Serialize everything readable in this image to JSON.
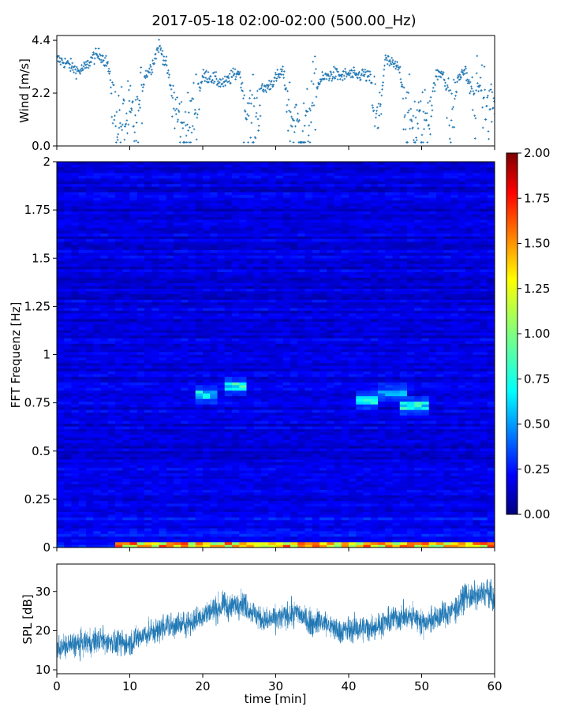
{
  "figure": {
    "title": "2017-05-18 02:00-02:00 (500.00_Hz)",
    "xlabel": "time [min]"
  },
  "colors": {
    "series": "#1f77b4",
    "axis": "#000000",
    "colormap": [
      "#00007f",
      "#0000ff",
      "#007fff",
      "#00ffff",
      "#7fff7f",
      "#ffff00",
      "#ff7f00",
      "#ff0000",
      "#7f0000"
    ]
  },
  "chart_data": [
    {
      "type": "scatter",
      "ylabel": "Wind [m/s]",
      "xlim": [
        0,
        60
      ],
      "ylim": [
        0.0,
        4.6
      ],
      "yticks": [
        0.0,
        2.2,
        4.4
      ],
      "ytick_labels": [
        "0.0",
        "2.2",
        "4.4"
      ],
      "marker": "+",
      "series": [
        {
          "x": [
            0,
            1,
            2,
            3,
            4,
            5,
            6,
            7,
            8,
            9,
            10,
            11,
            12,
            13,
            14,
            15,
            16,
            17,
            18,
            19,
            20,
            21,
            22,
            23,
            24,
            25,
            26,
            27,
            28,
            29,
            30,
            31,
            32,
            33,
            34,
            35,
            36,
            37,
            38,
            39,
            40,
            41,
            42,
            43,
            44,
            45,
            46,
            47,
            48,
            49,
            50,
            51,
            52,
            53,
            54,
            55,
            56,
            57,
            58,
            59,
            60
          ],
          "y": [
            3.6,
            3.5,
            3.3,
            3.1,
            3.3,
            3.7,
            3.8,
            3.4,
            1.2,
            1.0,
            1.2,
            0.8,
            2.9,
            3.3,
            4.2,
            3.4,
            1.8,
            0.8,
            0.6,
            1.7,
            2.9,
            2.9,
            2.7,
            2.6,
            2.9,
            3.1,
            1.4,
            1.0,
            2.3,
            2.5,
            2.8,
            3.1,
            1.2,
            0.8,
            0.5,
            1.8,
            2.7,
            2.9,
            3.0,
            2.9,
            3.0,
            2.9,
            3.0,
            2.8,
            0.7,
            3.6,
            3.4,
            3.2,
            1.2,
            0.9,
            0.8,
            1.5,
            2.9,
            3.1,
            1.0,
            2.8,
            3.2,
            1.8,
            2.6,
            1.4,
            1.9
          ]
        }
      ]
    },
    {
      "type": "heatmap",
      "ylabel": "FFT Frequenz [Hz]",
      "xlim": [
        0,
        60
      ],
      "ylim": [
        0,
        2
      ],
      "yticks": [
        0,
        0.25,
        0.5,
        0.75,
        1,
        1.25,
        1.5,
        1.75,
        2
      ],
      "ytick_labels": [
        "0",
        "0.25",
        "0.5",
        "0.75",
        "1",
        "1.25",
        "1.5",
        "1.75",
        "2"
      ],
      "colorbar": {
        "range": [
          0.0,
          2.0
        ],
        "ticks": [
          0.0,
          0.25,
          0.5,
          0.75,
          1.0,
          1.25,
          1.5,
          1.75,
          2.0
        ],
        "tick_labels": [
          "0.00",
          "0.25",
          "0.50",
          "0.75",
          "1.00",
          "1.25",
          "1.50",
          "1.75",
          "2.00"
        ]
      },
      "features": [
        {
          "freq": 0.79,
          "t_start": 19,
          "t_end": 22,
          "level": 0.7
        },
        {
          "freq": 0.84,
          "t_start": 23,
          "t_end": 26,
          "level": 0.8
        },
        {
          "freq": 0.76,
          "t_start": 41,
          "t_end": 44,
          "level": 0.75
        },
        {
          "freq": 0.8,
          "t_start": 44,
          "t_end": 48,
          "level": 0.6
        },
        {
          "freq": 0.74,
          "t_start": 47,
          "t_end": 51,
          "level": 0.75
        },
        {
          "freq": 0.01,
          "t_start": 8,
          "t_end": 60,
          "level": 1.4
        }
      ]
    },
    {
      "type": "line",
      "ylabel": "SPL [dB]",
      "xlim": [
        0,
        60
      ],
      "ylim": [
        9,
        37
      ],
      "yticks": [
        10,
        20,
        30
      ],
      "ytick_labels": [
        "10",
        "20",
        "30"
      ],
      "xticks": [
        0,
        10,
        20,
        30,
        40,
        50,
        60
      ],
      "xtick_labels": [
        "0",
        "10",
        "20",
        "30",
        "40",
        "50",
        "60"
      ],
      "series": [
        {
          "x": [
            0,
            1,
            2,
            3,
            4,
            5,
            6,
            7,
            8,
            9,
            10,
            11,
            12,
            13,
            14,
            15,
            16,
            17,
            18,
            19,
            20,
            21,
            22,
            23,
            24,
            25,
            26,
            27,
            28,
            29,
            30,
            31,
            32,
            33,
            34,
            35,
            36,
            37,
            38,
            39,
            40,
            41,
            42,
            43,
            44,
            45,
            46,
            47,
            48,
            49,
            50,
            51,
            52,
            53,
            54,
            55,
            56,
            57,
            58,
            59,
            60
          ],
          "y": [
            15.5,
            16,
            16.2,
            16.5,
            17,
            17.2,
            17.5,
            17.3,
            17,
            16.8,
            17,
            18,
            19,
            19.5,
            20,
            21.5,
            21,
            21.5,
            22,
            22.5,
            24,
            25,
            25.5,
            26.5,
            26,
            27.5,
            26,
            24.5,
            23,
            22.5,
            23,
            23.5,
            24,
            24.5,
            23,
            22,
            22.5,
            21.5,
            20.5,
            20,
            20,
            20.5,
            20.5,
            21,
            21.5,
            22,
            23,
            23.5,
            23.5,
            23.5,
            22,
            22.5,
            23,
            24,
            25,
            26,
            29,
            28.5,
            29,
            30,
            27
          ]
        }
      ]
    }
  ]
}
